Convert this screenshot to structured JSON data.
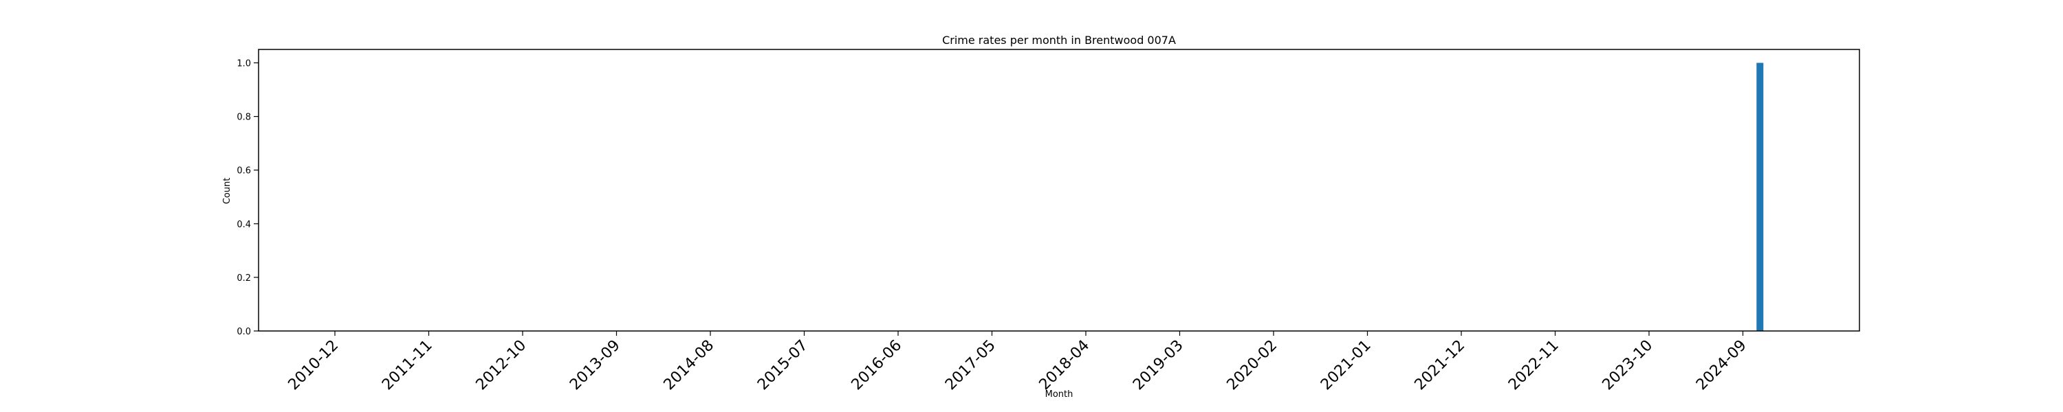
{
  "chart_data": {
    "type": "bar",
    "title": "Crime rates per month in Brentwood 007A",
    "xlabel": "Month",
    "ylabel": "Count",
    "ylim": [
      0,
      1.05
    ],
    "yticks": [
      0.0,
      0.2,
      0.4,
      0.6,
      0.8,
      1.0
    ],
    "ytick_labels": [
      "0.0",
      "0.2",
      "0.4",
      "0.6",
      "0.8",
      "1.0"
    ],
    "xtick_labels": [
      "2010-12",
      "2011-11",
      "2012-10",
      "2013-09",
      "2014-08",
      "2015-07",
      "2016-06",
      "2017-05",
      "2018-04",
      "2019-03",
      "2020-02",
      "2021-01",
      "2021-12",
      "2022-11",
      "2023-10",
      "2024-09"
    ],
    "categories": [
      "2024-11"
    ],
    "values": [
      1
    ],
    "bar_color": "#1f77b4",
    "grid": false,
    "legend": "none"
  }
}
